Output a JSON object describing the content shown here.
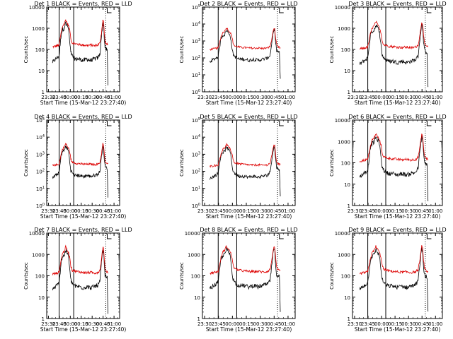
{
  "chart_data": {
    "type": "line",
    "x_tick_labels": [
      "23:30",
      "23:45",
      "00:00",
      "00:15",
      "00:30",
      "00:45",
      "01:00"
    ],
    "xlabel": "Start Time (15-Mar-12 23:27:40)",
    "ylabel": "Counts/sec",
    "legend_text": "BLACK = Events, RED = LLD",
    "log_y": true,
    "grid": false,
    "xlim_minutes": [
      0,
      100
    ],
    "series_colors": {
      "events": "#000000",
      "lld": "#dd0000"
    },
    "vertical_lines_solid_minutes": [
      17,
      37
    ],
    "vertical_lines_dotted_minutes": [
      81
    ],
    "marker_L_minutes": 83,
    "panels": [
      {
        "title": "Det 1",
        "yticks": [
          "1",
          "10",
          "100",
          "1000",
          "10000"
        ],
        "ylim": [
          1,
          10000
        ]
      },
      {
        "title": "Det 2",
        "yticks": [
          "10^0",
          "10^1",
          "10^2",
          "10^3",
          "10^4",
          "10^5"
        ],
        "ylim": [
          1,
          100000
        ]
      },
      {
        "title": "Det 3",
        "yticks": [
          "1",
          "10",
          "100",
          "1000",
          "10000"
        ],
        "ylim": [
          1,
          10000
        ]
      },
      {
        "title": "Det 4",
        "yticks": [
          "10^0",
          "10^1",
          "10^2",
          "10^3",
          "10^4",
          "10^5"
        ],
        "ylim": [
          1,
          100000
        ]
      },
      {
        "title": "Det 5",
        "yticks": [
          "10^0",
          "10^1",
          "10^2",
          "10^3",
          "10^4",
          "10^5"
        ],
        "ylim": [
          1,
          100000
        ]
      },
      {
        "title": "Det 6",
        "yticks": [
          "1",
          "10",
          "100",
          "1000",
          "10000"
        ],
        "ylim": [
          1,
          10000
        ]
      },
      {
        "title": "Det 7",
        "yticks": [
          "1",
          "10",
          "100",
          "1000",
          "10000"
        ],
        "ylim": [
          1,
          10000
        ]
      },
      {
        "title": "Det 8",
        "yticks": [
          "1",
          "10",
          "100",
          "1000",
          "10000"
        ],
        "ylim": [
          1,
          10000
        ]
      },
      {
        "title": "Det 9",
        "yticks": [
          "1",
          "10",
          "100",
          "1000",
          "10000"
        ],
        "ylim": [
          1,
          10000
        ]
      }
    ],
    "series_profiles": {
      "time_minutes": [
        8,
        17,
        20,
        22,
        24,
        26,
        28,
        30,
        32,
        33,
        35,
        37,
        40,
        45,
        50,
        55,
        60,
        65,
        70,
        73,
        75,
        76,
        77,
        78,
        79,
        80,
        81,
        82,
        83,
        84
      ],
      "lld_counts": [
        130,
        160,
        700,
        1300,
        1600,
        2500,
        1800,
        1300,
        700,
        320,
        200,
        200,
        180,
        170,
        160,
        155,
        160,
        150,
        160,
        200,
        600,
        1300,
        2500,
        2000,
        600,
        250,
        200,
        180,
        170,
        160
      ],
      "events_counts": [
        25,
        50,
        600,
        900,
        1000,
        1800,
        1300,
        900,
        150,
        70,
        50,
        40,
        35,
        35,
        30,
        35,
        30,
        35,
        40,
        60,
        400,
        900,
        1800,
        1400,
        300,
        120,
        100,
        100,
        90,
        2
      ]
    }
  }
}
